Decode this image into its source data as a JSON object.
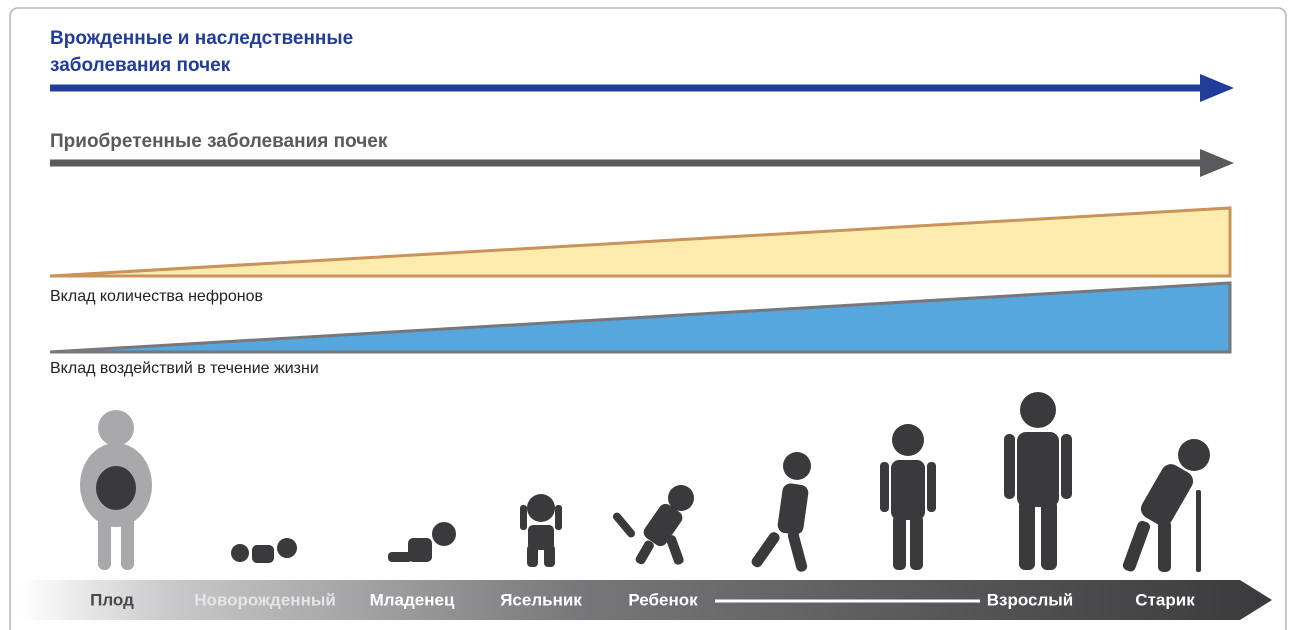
{
  "header": {
    "title_lines": [
      "Врожденные и наследственные",
      "заболевания почек"
    ]
  },
  "acquired": {
    "title": "Приобретенные заболевания почек"
  },
  "wedges": [
    {
      "label": "Вклад количества нефронов"
    },
    {
      "label": "Вклад воздействий в течение жизни"
    }
  ],
  "timeline": {
    "stages": [
      "Плод",
      "Новорожденный",
      "Младенец",
      "Ясельник",
      "Ребенок",
      "Взрослый",
      "Старик"
    ]
  }
}
